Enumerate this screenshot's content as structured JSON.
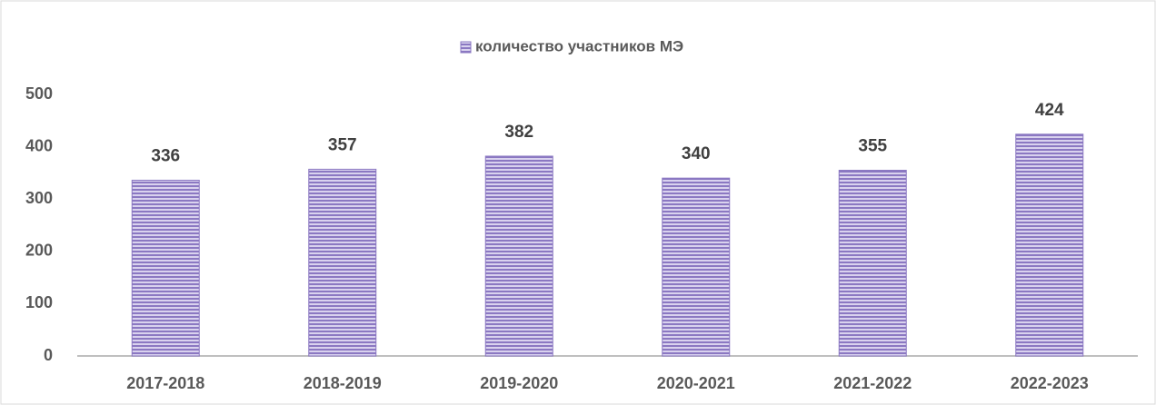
{
  "chart_data": {
    "type": "bar",
    "series": [
      {
        "name": "количество участников МЭ",
        "color": "#8b78c2",
        "values": [
          336,
          357,
          382,
          340,
          355,
          424
        ]
      }
    ],
    "categories": [
      "2017-2018",
      "2018-2019",
      "2019-2020",
      "2020-2021",
      "2021-2022",
      "2022-2023"
    ],
    "ylim": [
      0,
      500
    ],
    "yticks": [
      0,
      100,
      200,
      300,
      400,
      500
    ],
    "grid": false,
    "legend": "top"
  }
}
